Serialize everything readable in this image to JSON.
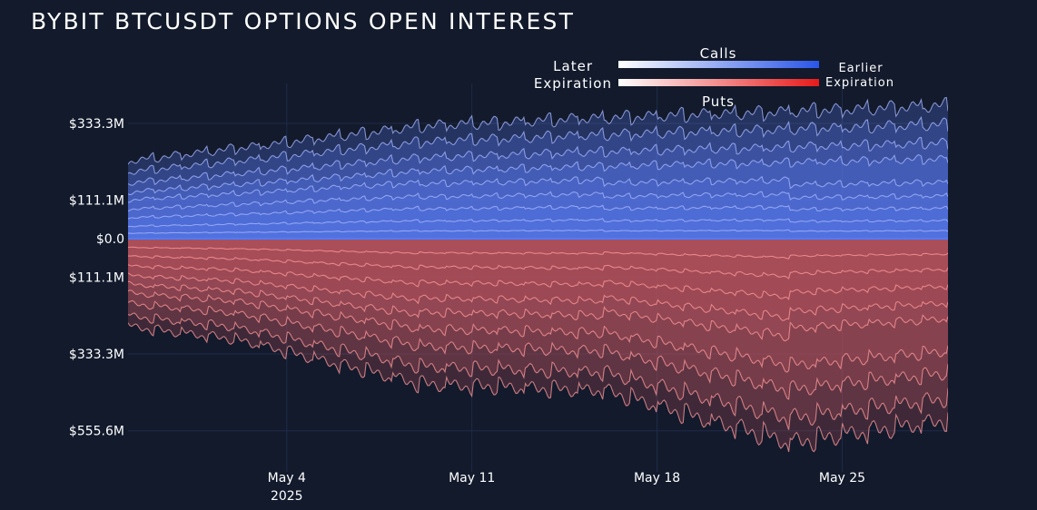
{
  "title": "BYBIT BTCUSDT OPTIONS OPEN INTEREST",
  "legend": {
    "calls_label": "Calls",
    "puts_label": "Puts",
    "later_line1": "Later",
    "later_line2": "Expiration",
    "earlier_line1": "Earlier",
    "earlier_line2": "Expiration"
  },
  "colors": {
    "background": "#121a2c",
    "calls_accent": "#2a55e8",
    "puts_accent": "#e81a1a",
    "zero_line": "#4d7bff",
    "grid": "#1f2b48"
  },
  "chart_data": {
    "type": "area",
    "title": "BYBIT BTCUSDT OPTIONS OPEN INTEREST",
    "xlabel": "",
    "ylabel": "",
    "x_range": [
      "2025-04-28",
      "2025-05-29"
    ],
    "x_ticks": [
      {
        "date": "2025-05-04",
        "label": "May 4",
        "sublabel": "2025"
      },
      {
        "date": "2025-05-11",
        "label": "May 11",
        "sublabel": ""
      },
      {
        "date": "2025-05-18",
        "label": "May 18",
        "sublabel": ""
      },
      {
        "date": "2025-05-25",
        "label": "May 25",
        "sublabel": ""
      }
    ],
    "y_range": [
      -622000000,
      400000000
    ],
    "y_ticks": [
      {
        "value": 333300000,
        "label": "$333.3M"
      },
      {
        "value": 111100000,
        "label": "$111.1M"
      },
      {
        "value": 0,
        "label": "$0.0"
      },
      {
        "value": -111100000,
        "label": "$111.1M"
      },
      {
        "value": -333300000,
        "label": "$333.3M"
      },
      {
        "value": -555600000,
        "label": "$555.6M"
      }
    ],
    "grid": true,
    "legend_position": "top-right",
    "series": [
      {
        "side": "calls",
        "total_top_M": [
          {
            "date": "2025-04-28",
            "value": 225
          },
          {
            "date": "2025-05-02",
            "value": 260
          },
          {
            "date": "2025-05-09",
            "value": 325
          },
          {
            "date": "2025-05-16",
            "value": 350
          },
          {
            "date": "2025-05-22",
            "value": 365
          },
          {
            "date": "2025-05-29",
            "value": 385
          }
        ]
      },
      {
        "side": "puts",
        "total_bottom_M": [
          {
            "date": "2025-04-28",
            "value": -255
          },
          {
            "date": "2025-05-02",
            "value": -290
          },
          {
            "date": "2025-05-09",
            "value": -420
          },
          {
            "date": "2025-05-16",
            "value": -440
          },
          {
            "date": "2025-05-23",
            "value": -590
          },
          {
            "date": "2025-05-29",
            "value": -525
          }
        ]
      }
    ]
  }
}
